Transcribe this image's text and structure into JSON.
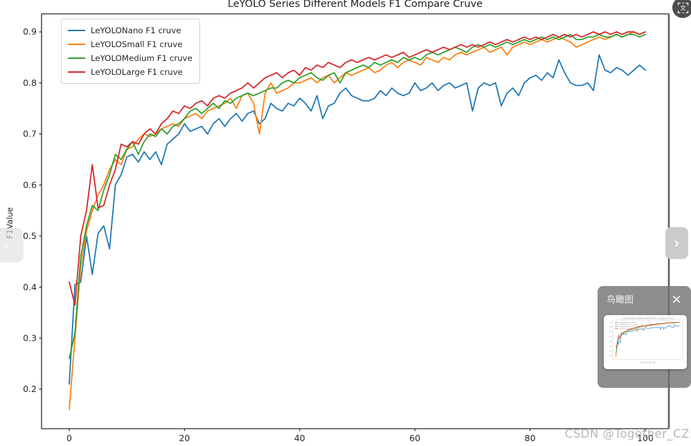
{
  "viewer": {
    "translate_icon_label": "文",
    "prev_button": {
      "chevron": "‹"
    },
    "next_button": {
      "chevron": "›"
    },
    "watermark": "CSDN @Together_CZ",
    "minimap": {
      "title": "鸟瞰图",
      "close_label": "×"
    },
    "colors": {
      "panel_bg": "rgba(110,110,110,0.78)",
      "next_button_bg": "#cbcbcb",
      "prev_handle_bg": "rgba(222,222,222,0.62)",
      "translate_bg": "rgba(52,52,52,0.88)",
      "watermark_color": "#b7b7b7"
    }
  },
  "chart_data": {
    "type": "line",
    "title": "LeYOLO Series Different Models F1 Compare Cruve",
    "xlabel": "",
    "ylabel": "F1Value",
    "xlim": [
      -5,
      105
    ],
    "ylim": [
      0.12,
      0.95
    ],
    "x_ticks": [
      0,
      20,
      40,
      60,
      80,
      100
    ],
    "y_ticks": [
      0.2,
      0.3,
      0.4,
      0.5,
      0.6,
      0.7,
      0.8,
      0.9
    ],
    "grid": false,
    "legend_position": "upper left",
    "x": [
      0,
      1,
      2,
      3,
      4,
      5,
      6,
      7,
      8,
      9,
      10,
      11,
      12,
      13,
      14,
      15,
      16,
      17,
      18,
      19,
      20,
      21,
      22,
      23,
      24,
      25,
      26,
      27,
      28,
      29,
      30,
      31,
      32,
      33,
      34,
      35,
      36,
      37,
      38,
      39,
      40,
      41,
      42,
      43,
      44,
      45,
      46,
      47,
      48,
      49,
      50,
      51,
      52,
      53,
      54,
      55,
      56,
      57,
      58,
      59,
      60,
      61,
      62,
      63,
      64,
      65,
      66,
      67,
      68,
      69,
      70,
      71,
      72,
      73,
      74,
      75,
      76,
      77,
      78,
      79,
      80,
      81,
      82,
      83,
      84,
      85,
      86,
      87,
      88,
      89,
      90,
      91,
      92,
      93,
      94,
      95,
      96,
      97,
      98,
      99,
      100
    ],
    "series": [
      {
        "name": "LeYOLONano F1 cruve",
        "color": "#1f77b4",
        "values": [
          0.21,
          0.405,
          0.41,
          0.5,
          0.425,
          0.505,
          0.52,
          0.475,
          0.6,
          0.62,
          0.655,
          0.66,
          0.645,
          0.665,
          0.65,
          0.665,
          0.64,
          0.68,
          0.69,
          0.7,
          0.72,
          0.705,
          0.71,
          0.715,
          0.7,
          0.72,
          0.73,
          0.715,
          0.73,
          0.74,
          0.725,
          0.74,
          0.745,
          0.72,
          0.73,
          0.76,
          0.75,
          0.745,
          0.76,
          0.755,
          0.77,
          0.76,
          0.745,
          0.775,
          0.73,
          0.755,
          0.76,
          0.78,
          0.79,
          0.775,
          0.77,
          0.765,
          0.765,
          0.77,
          0.785,
          0.775,
          0.79,
          0.78,
          0.775,
          0.78,
          0.8,
          0.785,
          0.79,
          0.8,
          0.785,
          0.795,
          0.8,
          0.79,
          0.795,
          0.8,
          0.745,
          0.79,
          0.8,
          0.795,
          0.8,
          0.755,
          0.78,
          0.79,
          0.775,
          0.8,
          0.81,
          0.815,
          0.805,
          0.82,
          0.81,
          0.845,
          0.82,
          0.8,
          0.795,
          0.795,
          0.8,
          0.785,
          0.855,
          0.825,
          0.82,
          0.83,
          0.825,
          0.815,
          0.825,
          0.835,
          0.825
        ]
      },
      {
        "name": "LeYOLOSmall F1 cruve",
        "color": "#ff7f0e",
        "values": [
          0.16,
          0.3,
          0.44,
          0.51,
          0.55,
          0.58,
          0.6,
          0.63,
          0.65,
          0.64,
          0.67,
          0.675,
          0.69,
          0.7,
          0.695,
          0.7,
          0.71,
          0.715,
          0.72,
          0.715,
          0.73,
          0.735,
          0.74,
          0.73,
          0.745,
          0.75,
          0.755,
          0.76,
          0.77,
          0.75,
          0.775,
          0.78,
          0.76,
          0.7,
          0.78,
          0.8,
          0.78,
          0.785,
          0.79,
          0.8,
          0.8,
          0.805,
          0.81,
          0.8,
          0.81,
          0.815,
          0.8,
          0.81,
          0.82,
          0.815,
          0.82,
          0.825,
          0.83,
          0.82,
          0.825,
          0.835,
          0.84,
          0.83,
          0.84,
          0.845,
          0.84,
          0.835,
          0.85,
          0.845,
          0.84,
          0.85,
          0.845,
          0.855,
          0.86,
          0.855,
          0.86,
          0.865,
          0.87,
          0.86,
          0.865,
          0.87,
          0.855,
          0.87,
          0.875,
          0.88,
          0.875,
          0.88,
          0.885,
          0.88,
          0.885,
          0.89,
          0.885,
          0.88,
          0.87,
          0.875,
          0.88,
          0.885,
          0.89,
          0.885,
          0.89,
          0.895,
          0.89,
          0.895,
          0.9,
          0.895,
          0.9
        ]
      },
      {
        "name": "LeYOLOMedium F1 cruve",
        "color": "#2ca02c",
        "values": [
          0.26,
          0.31,
          0.46,
          0.52,
          0.56,
          0.55,
          0.59,
          0.62,
          0.66,
          0.65,
          0.67,
          0.685,
          0.66,
          0.685,
          0.7,
          0.695,
          0.71,
          0.7,
          0.715,
          0.72,
          0.73,
          0.745,
          0.75,
          0.74,
          0.75,
          0.76,
          0.75,
          0.765,
          0.76,
          0.77,
          0.775,
          0.78,
          0.775,
          0.78,
          0.785,
          0.79,
          0.79,
          0.8,
          0.805,
          0.8,
          0.81,
          0.815,
          0.82,
          0.81,
          0.805,
          0.815,
          0.82,
          0.8,
          0.82,
          0.825,
          0.83,
          0.835,
          0.83,
          0.84,
          0.835,
          0.84,
          0.845,
          0.84,
          0.85,
          0.845,
          0.85,
          0.845,
          0.855,
          0.86,
          0.855,
          0.86,
          0.865,
          0.87,
          0.865,
          0.86,
          0.87,
          0.875,
          0.87,
          0.875,
          0.87,
          0.875,
          0.88,
          0.875,
          0.88,
          0.885,
          0.88,
          0.885,
          0.89,
          0.885,
          0.89,
          0.885,
          0.89,
          0.895,
          0.885,
          0.885,
          0.89,
          0.89,
          0.895,
          0.89,
          0.89,
          0.895,
          0.89,
          0.895,
          0.895,
          0.89,
          0.895
        ]
      },
      {
        "name": "LeYOLOLarge F1 cruve",
        "color": "#d62728",
        "values": [
          0.41,
          0.365,
          0.5,
          0.55,
          0.64,
          0.555,
          0.56,
          0.6,
          0.63,
          0.68,
          0.675,
          0.685,
          0.68,
          0.7,
          0.71,
          0.7,
          0.72,
          0.73,
          0.745,
          0.74,
          0.755,
          0.75,
          0.76,
          0.765,
          0.755,
          0.77,
          0.775,
          0.77,
          0.78,
          0.785,
          0.79,
          0.8,
          0.79,
          0.8,
          0.81,
          0.815,
          0.82,
          0.81,
          0.82,
          0.825,
          0.815,
          0.83,
          0.825,
          0.835,
          0.83,
          0.84,
          0.835,
          0.83,
          0.84,
          0.845,
          0.84,
          0.845,
          0.85,
          0.845,
          0.85,
          0.855,
          0.85,
          0.855,
          0.86,
          0.85,
          0.855,
          0.86,
          0.865,
          0.86,
          0.865,
          0.87,
          0.865,
          0.87,
          0.875,
          0.87,
          0.875,
          0.87,
          0.875,
          0.88,
          0.875,
          0.88,
          0.885,
          0.88,
          0.885,
          0.89,
          0.885,
          0.89,
          0.885,
          0.89,
          0.895,
          0.89,
          0.895,
          0.89,
          0.895,
          0.89,
          0.895,
          0.9,
          0.895,
          0.9,
          0.895,
          0.9,
          0.895,
          0.9,
          0.9,
          0.895,
          0.9
        ]
      }
    ]
  }
}
